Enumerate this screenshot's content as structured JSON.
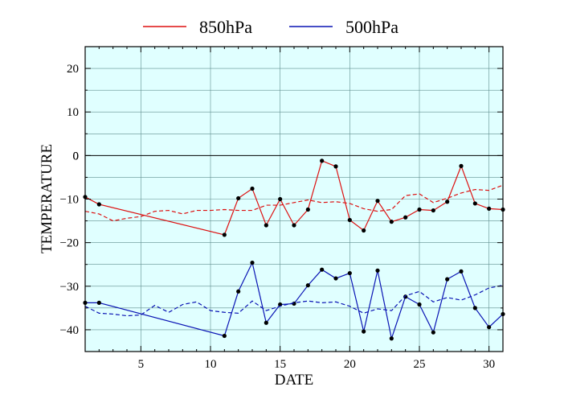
{
  "chart_data": {
    "type": "line",
    "xlabel": "DATE",
    "ylabel": "TEMPERATURE",
    "xlim": [
      1,
      31
    ],
    "ylim": [
      -45,
      25
    ],
    "xticks": [
      5,
      10,
      15,
      20,
      25,
      30
    ],
    "yticks": [
      20,
      10,
      0,
      -10,
      -20,
      -30,
      -40
    ],
    "grid": true,
    "legend_position": "top-center",
    "colors": {
      "plot_background": "#e0ffff",
      "grid": "#5f8f8f",
      "series_850": "#dd1111",
      "series_500": "#0a14b4",
      "marker": "#000000"
    },
    "series": [
      {
        "name": "850hPa",
        "style": "solid",
        "markers": true,
        "x": [
          1,
          2,
          11,
          12,
          13,
          14,
          15,
          16,
          17,
          18,
          19,
          20,
          21,
          22,
          23,
          24,
          25,
          26,
          27,
          28,
          29,
          30,
          31
        ],
        "y": [
          -9.5,
          -11.2,
          -18.2,
          -9.8,
          -7.6,
          -16.0,
          -10.0,
          -16.0,
          -12.4,
          -1.2,
          -2.5,
          -14.8,
          -17.2,
          -10.4,
          -15.2,
          -14.2,
          -12.4,
          -12.6,
          -10.6,
          -2.4,
          -11.0,
          -12.2,
          -12.4
        ]
      },
      {
        "name": "",
        "style": "dashed",
        "markers": false,
        "x": [
          1,
          2,
          3,
          4,
          5,
          6,
          7,
          8,
          9,
          10,
          11,
          12,
          13,
          14,
          15,
          16,
          17,
          18,
          19,
          20,
          21,
          22,
          23,
          24,
          25,
          26,
          27,
          28,
          29,
          30,
          31
        ],
        "y": [
          -12.8,
          -13.4,
          -15.0,
          -14.4,
          -14.0,
          -12.8,
          -12.6,
          -13.4,
          -12.6,
          -12.6,
          -12.4,
          -12.6,
          -12.6,
          -11.4,
          -11.4,
          -10.8,
          -10.2,
          -10.8,
          -10.6,
          -11.0,
          -12.2,
          -12.8,
          -12.4,
          -9.2,
          -8.8,
          -10.8,
          -9.8,
          -8.6,
          -7.8,
          -8.0,
          -6.8
        ]
      },
      {
        "name": "500hPa",
        "style": "solid",
        "markers": true,
        "x": [
          1,
          2,
          11,
          12,
          13,
          14,
          15,
          16,
          17,
          18,
          19,
          20,
          21,
          22,
          23,
          24,
          25,
          26,
          27,
          28,
          29,
          30,
          31
        ],
        "y": [
          -33.8,
          -33.8,
          -41.4,
          -31.2,
          -24.6,
          -38.4,
          -34.2,
          -34.0,
          -29.8,
          -26.2,
          -28.2,
          -27.0,
          -40.4,
          -26.4,
          -42.0,
          -32.4,
          -34.2,
          -40.6,
          -28.4,
          -26.6,
          -35.0,
          -39.4,
          -36.4
        ]
      },
      {
        "name": "",
        "style": "dashed",
        "markers": false,
        "x": [
          1,
          2,
          3,
          4,
          5,
          6,
          7,
          8,
          9,
          10,
          11,
          12,
          13,
          14,
          15,
          16,
          17,
          18,
          19,
          20,
          21,
          22,
          23,
          24,
          25,
          26,
          27,
          28,
          29,
          30,
          31
        ],
        "y": [
          -34.6,
          -36.2,
          -36.4,
          -36.8,
          -36.6,
          -34.4,
          -36.0,
          -34.2,
          -33.6,
          -35.6,
          -36.0,
          -36.2,
          -33.4,
          -35.6,
          -34.6,
          -33.8,
          -33.4,
          -33.8,
          -33.6,
          -34.6,
          -36.2,
          -35.2,
          -35.6,
          -32.2,
          -31.2,
          -33.6,
          -32.6,
          -33.2,
          -32.0,
          -30.4,
          -29.8
        ]
      }
    ]
  }
}
